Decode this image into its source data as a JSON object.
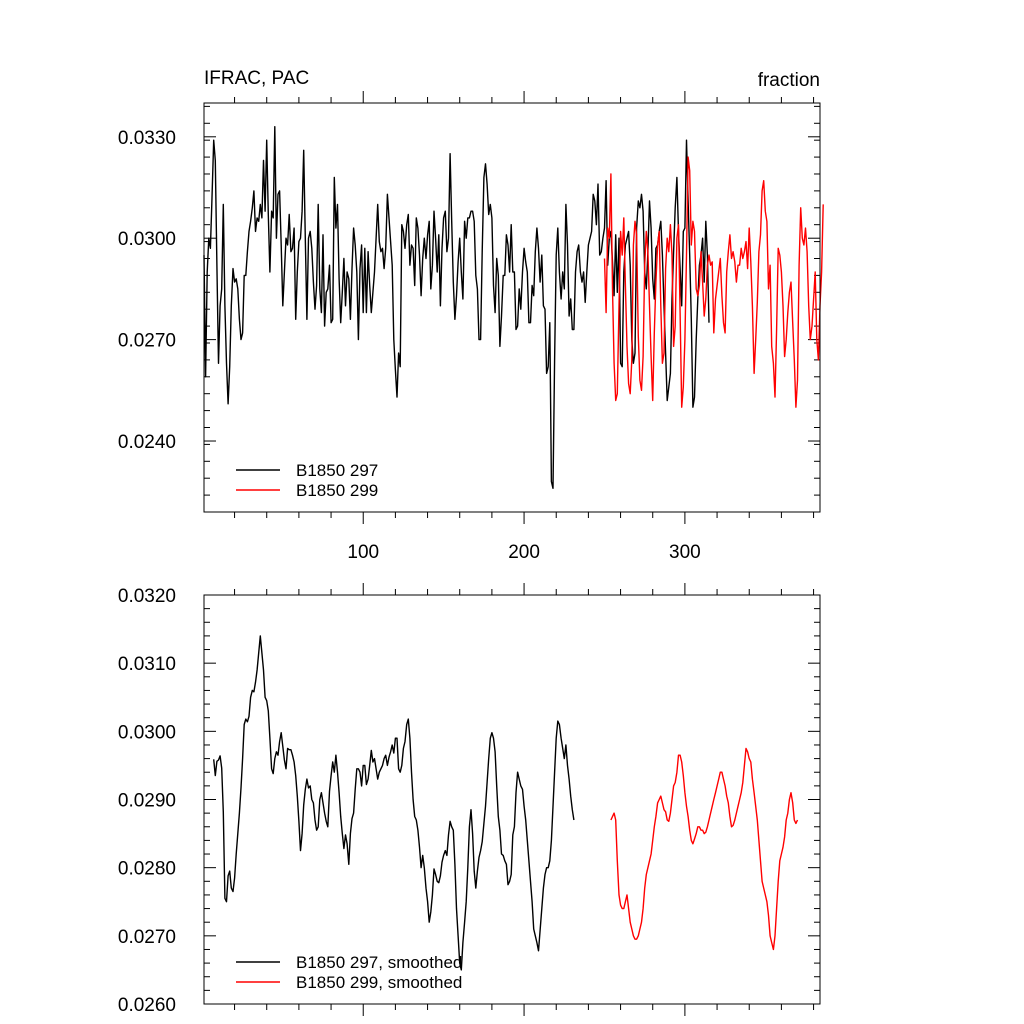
{
  "chart_data": [
    {
      "type": "line",
      "title_left": "IFRAC, PAC",
      "title_right": "fraction",
      "xlim": [
        1,
        384
      ],
      "ylim": [
        0.0219,
        0.034
      ],
      "yticks": [
        "0.0240",
        "0.0270",
        "0.0300",
        "0.0330"
      ],
      "xticks": [
        "100",
        "200",
        "300"
      ],
      "grid": false,
      "legend_position": "bottom-left",
      "series": [
        {
          "name": "B1850 297",
          "color": "#000000",
          "x_start": 1,
          "values": [
            0.0295,
            0.0259,
            0.029,
            0.03,
            0.0297,
            0.0312,
            0.0329,
            0.0323,
            0.0292,
            0.0263,
            0.028,
            0.0285,
            0.031,
            0.028,
            0.0263,
            0.0251,
            0.0262,
            0.028,
            0.0291,
            0.0287,
            0.0288,
            0.0285,
            0.0276,
            0.027,
            0.0272,
            0.0289,
            0.0289,
            0.0296,
            0.0302,
            0.0305,
            0.0309,
            0.0314,
            0.0302,
            0.0306,
            0.0305,
            0.031,
            0.0306,
            0.0323,
            0.0308,
            0.0329,
            0.0307,
            0.029,
            0.0308,
            0.0306,
            0.0333,
            0.03,
            0.0313,
            0.0314,
            0.0298,
            0.028,
            0.029,
            0.03,
            0.0298,
            0.0307,
            0.0296,
            0.0297,
            0.0303,
            0.0276,
            0.029,
            0.0299,
            0.03,
            0.0308,
            0.0326,
            0.03,
            0.0276,
            0.03,
            0.0302,
            0.0297,
            0.0287,
            0.0279,
            0.0286,
            0.031,
            0.0285,
            0.0278,
            0.0301,
            0.0274,
            0.0284,
            0.0285,
            0.0292,
            0.0275,
            0.0276,
            0.0318,
            0.0303,
            0.031,
            0.0288,
            0.0275,
            0.0284,
            0.0294,
            0.028,
            0.029,
            0.0288,
            0.0276,
            0.0291,
            0.0303,
            0.0298,
            0.029,
            0.027,
            0.0291,
            0.0298,
            0.0278,
            0.0297,
            0.0278,
            0.0296,
            0.0286,
            0.0278,
            0.0284,
            0.029,
            0.03,
            0.031,
            0.0299,
            0.0296,
            0.0297,
            0.0291,
            0.0297,
            0.0313,
            0.0306,
            0.0299,
            0.0292,
            0.027,
            0.0261,
            0.0253,
            0.0266,
            0.0262,
            0.0304,
            0.0302,
            0.0297,
            0.0304,
            0.0307,
            0.0292,
            0.0298,
            0.0297,
            0.0286,
            0.0306,
            0.0303,
            0.0295,
            0.0283,
            0.0294,
            0.03,
            0.0294,
            0.0301,
            0.0305,
            0.0285,
            0.0292,
            0.0308,
            0.03,
            0.029,
            0.0301,
            0.028,
            0.0297,
            0.0306,
            0.0308,
            0.0296,
            0.03,
            0.0325,
            0.0305,
            0.0287,
            0.0276,
            0.0283,
            0.0293,
            0.03,
            0.029,
            0.0282,
            0.0305,
            0.03,
            0.0306,
            0.0306,
            0.0308,
            0.0308,
            0.0305,
            0.0289,
            0.0285,
            0.027,
            0.027,
            0.0296,
            0.0318,
            0.0322,
            0.0316,
            0.0307,
            0.031,
            0.0306,
            0.0286,
            0.0278,
            0.0294,
            0.0289,
            0.0268,
            0.0277,
            0.0289,
            0.0289,
            0.0301,
            0.0298,
            0.029,
            0.0304,
            0.029,
            0.029,
            0.0273,
            0.0274,
            0.0285,
            0.0279,
            0.029,
            0.0297,
            0.0293,
            0.029,
            0.0275,
            0.0275,
            0.0286,
            0.0283,
            0.0296,
            0.0303,
            0.0297,
            0.0287,
            0.0295,
            0.028,
            0.0279,
            0.026,
            0.0262,
            0.0275,
            0.0228,
            0.0226,
            0.0264,
            0.0295,
            0.0303,
            0.029,
            0.0282,
            0.029,
            0.0285,
            0.031,
            0.0298,
            0.0277,
            0.0282,
            0.0273,
            0.0273,
            0.029,
            0.0296,
            0.0298,
            0.029,
            0.0287,
            0.029,
            0.0281,
            0.029,
            0.0298,
            0.03,
            0.0302,
            0.0313,
            0.0311,
            0.0304,
            0.0316,
            0.0295,
            0.0296,
            0.03,
            0.0303,
            0.0317,
            0.0292,
            0.03,
            0.0302,
            0.0293,
            0.0283,
            0.0301,
            0.0284,
            0.03,
            0.0263,
            0.0262,
            0.029,
            0.0298,
            0.03,
            0.0302,
            0.0292,
            0.027,
            0.0263,
            0.0266,
            0.0303,
            0.0311,
            0.0309,
            0.0313,
            0.0308,
            0.029,
            0.0285,
            0.0296,
            0.0311,
            0.0303,
            0.0288,
            0.0282,
            0.0297,
            0.0298,
            0.0302,
            0.0305,
            0.0295,
            0.028,
            0.0266,
            0.0252,
            0.0256,
            0.026,
            0.0282,
            0.0296,
            0.0309,
            0.0318,
            0.0302,
            0.0291,
            0.028,
            0.0302,
            0.0303,
            0.0329,
            0.0311,
            0.0295,
            0.0276,
            0.025,
            0.0253,
            0.027,
            0.0282,
            0.0292,
            0.0295,
            0.03,
            0.0287,
            0.0305,
            0.0295,
            0.0275
          ]
        },
        {
          "name": "B1850 299",
          "color": "#ff0000",
          "x_start": 250,
          "values": [
            0.0294,
            0.0278,
            0.0303,
            0.03,
            0.0319,
            0.0285,
            0.0263,
            0.0252,
            0.0254,
            0.028,
            0.0302,
            0.0295,
            0.0306,
            0.0286,
            0.0268,
            0.0257,
            0.0254,
            0.0264,
            0.0298,
            0.0305,
            0.0301,
            0.0271,
            0.0258,
            0.0255,
            0.0265,
            0.0292,
            0.0302,
            0.0296,
            0.028,
            0.0265,
            0.0252,
            0.0272,
            0.0287,
            0.0298,
            0.0302,
            0.028,
            0.0263,
            0.0266,
            0.0291,
            0.03,
            0.0296,
            0.0304,
            0.0295,
            0.0268,
            0.0274,
            0.03,
            0.0304,
            0.0278,
            0.025,
            0.0256,
            0.027,
            0.0295,
            0.0324,
            0.032,
            0.0298,
            0.0305,
            0.0302,
            0.0285,
            0.0283,
            0.0286,
            0.0296,
            0.0287,
            0.0277,
            0.0282,
            0.0292,
            0.0295,
            0.0292,
            0.0293,
            0.0272,
            0.0282,
            0.0286,
            0.029,
            0.0294,
            0.0283,
            0.0275,
            0.0272,
            0.029,
            0.0296,
            0.0301,
            0.0294,
            0.0296,
            0.0293,
            0.0287,
            0.0292,
            0.0292,
            0.0297,
            0.0294,
            0.0296,
            0.0299,
            0.0291,
            0.0303,
            0.0293,
            0.028,
            0.026,
            0.027,
            0.0281,
            0.0296,
            0.0301,
            0.0314,
            0.0317,
            0.0308,
            0.0305,
            0.0285,
            0.0292,
            0.0268,
            0.0263,
            0.0253,
            0.0273,
            0.0297,
            0.0295,
            0.029,
            0.028,
            0.0265,
            0.027,
            0.0278,
            0.0284,
            0.0287,
            0.0275,
            0.0264,
            0.025,
            0.0258,
            0.0292,
            0.0309,
            0.03,
            0.0298,
            0.0303,
            0.0296,
            0.028,
            0.027,
            0.0274,
            0.0282,
            0.029,
            0.027,
            0.0264,
            0.028,
            0.029,
            0.031
          ]
        }
      ]
    },
    {
      "type": "line",
      "xlim": [
        1,
        384
      ],
      "ylim": [
        0.026,
        0.032
      ],
      "yticks": [
        "0.0260",
        "0.0270",
        "0.0280",
        "0.0290",
        "0.0300",
        "0.0310",
        "0.0320"
      ],
      "grid": false,
      "legend_position": "bottom-left",
      "series": [
        {
          "name": "B1850 297, smoothed",
          "color": "#000000",
          "x_start": 7,
          "values": [
            0.02959,
            0.02935,
            0.02956,
            0.02958,
            0.02964,
            0.02946,
            0.02882,
            0.02755,
            0.0275,
            0.02788,
            0.02795,
            0.0277,
            0.02765,
            0.02785,
            0.0282,
            0.0285,
            0.0288,
            0.02917,
            0.0296,
            0.0301,
            0.03018,
            0.03014,
            0.03022,
            0.0305,
            0.0306,
            0.03058,
            0.03072,
            0.0309,
            0.03115,
            0.0314,
            0.03115,
            0.0309,
            0.0305,
            0.03045,
            0.0303,
            0.0299,
            0.02945,
            0.02938,
            0.0296,
            0.0297,
            0.02965,
            0.02985,
            0.02998,
            0.02978,
            0.02958,
            0.02945,
            0.02975,
            0.02973,
            0.02973,
            0.02965,
            0.02955,
            0.02935,
            0.02905,
            0.02868,
            0.02825,
            0.0285,
            0.02892,
            0.02915,
            0.0293,
            0.02917,
            0.0292,
            0.029,
            0.02895,
            0.0287,
            0.02855,
            0.0286,
            0.029,
            0.0291,
            0.02895,
            0.0288,
            0.02868,
            0.0286,
            0.02912,
            0.02935,
            0.02955,
            0.0294,
            0.02965,
            0.0294,
            0.0291,
            0.02875,
            0.0285,
            0.02828,
            0.02848,
            0.02835,
            0.02805,
            0.0285,
            0.02872,
            0.0288,
            0.02915,
            0.02945,
            0.02945,
            0.0294,
            0.0292,
            0.0295,
            0.0295,
            0.02922,
            0.0293,
            0.0295,
            0.02972,
            0.02955,
            0.0296,
            0.02945,
            0.0293,
            0.0294,
            0.02945,
            0.0295,
            0.0296,
            0.02965,
            0.0295,
            0.02962,
            0.0297,
            0.0298,
            0.02968,
            0.0299,
            0.0299,
            0.02945,
            0.0294,
            0.0295,
            0.02975,
            0.02985,
            0.0301,
            0.03018,
            0.0299,
            0.0294,
            0.029,
            0.02875,
            0.0287,
            0.02855,
            0.0283,
            0.028,
            0.02818,
            0.028,
            0.0277,
            0.0275,
            0.0272,
            0.02735,
            0.0276,
            0.02798,
            0.0279,
            0.0278,
            0.02778,
            0.02788,
            0.02808,
            0.02818,
            0.02825,
            0.02818,
            0.02848,
            0.02868,
            0.0286,
            0.02855,
            0.02805,
            0.0274,
            0.027,
            0.0266,
            0.0265,
            0.0269,
            0.0272,
            0.0275,
            0.028,
            0.0286,
            0.02885,
            0.0285,
            0.02795,
            0.0277,
            0.02795,
            0.02815,
            0.02825,
            0.02838,
            0.02865,
            0.0289,
            0.02925,
            0.0296,
            0.0299,
            0.02998,
            0.0299,
            0.0297,
            0.0292,
            0.02875,
            0.02855,
            0.0282,
            0.02818,
            0.0281,
            0.02805,
            0.02775,
            0.0278,
            0.0279,
            0.02848,
            0.0286,
            0.0291,
            0.0294,
            0.0293,
            0.0292,
            0.02915,
            0.0289,
            0.0287,
            0.0284,
            0.0281,
            0.0278,
            0.0275,
            0.0271,
            0.027,
            0.0269,
            0.02678,
            0.02708,
            0.0274,
            0.0277,
            0.0279,
            0.028,
            0.028,
            0.0281,
            0.0284,
            0.0289,
            0.0294,
            0.0299,
            0.03015,
            0.0301,
            0.0299,
            0.02975,
            0.0296,
            0.0298,
            0.0295,
            0.0293,
            0.02905,
            0.02885,
            0.0287
          ]
        },
        {
          "name": "B1850 299, smoothed",
          "color": "#ff0000",
          "x_start": 254,
          "values": [
            0.0287,
            0.02875,
            0.0288,
            0.0287,
            0.0281,
            0.0276,
            0.02745,
            0.0274,
            0.0274,
            0.0275,
            0.0276,
            0.0274,
            0.0272,
            0.0271,
            0.027,
            0.02695,
            0.02695,
            0.027,
            0.0271,
            0.0272,
            0.0274,
            0.0277,
            0.0279,
            0.028,
            0.0281,
            0.0282,
            0.0284,
            0.0286,
            0.02875,
            0.02895,
            0.029,
            0.02905,
            0.02895,
            0.02885,
            0.02882,
            0.0287,
            0.02868,
            0.0288,
            0.029,
            0.0292,
            0.02925,
            0.0294,
            0.02965,
            0.02965,
            0.02955,
            0.02935,
            0.0291,
            0.0289,
            0.02875,
            0.02855,
            0.0284,
            0.02835,
            0.02842,
            0.0285,
            0.0286,
            0.0286,
            0.02855,
            0.02855,
            0.0285,
            0.02852,
            0.0286,
            0.0287,
            0.0288,
            0.0289,
            0.029,
            0.0291,
            0.0292,
            0.0293,
            0.0294,
            0.0294,
            0.0293,
            0.0292,
            0.02905,
            0.02895,
            0.02875,
            0.0286,
            0.02862,
            0.0287,
            0.0288,
            0.0289,
            0.029,
            0.0291,
            0.02925,
            0.0295,
            0.02975,
            0.0297,
            0.0296,
            0.02955,
            0.0293,
            0.0291,
            0.0289,
            0.0287,
            0.0284,
            0.0281,
            0.0278,
            0.0277,
            0.0276,
            0.0275,
            0.0273,
            0.027,
            0.0269,
            0.0268,
            0.027,
            0.0274,
            0.0278,
            0.0281,
            0.0282,
            0.0283,
            0.02845,
            0.0287,
            0.0288,
            0.029,
            0.0291,
            0.02895,
            0.0287,
            0.02865,
            0.0287
          ]
        }
      ]
    }
  ]
}
